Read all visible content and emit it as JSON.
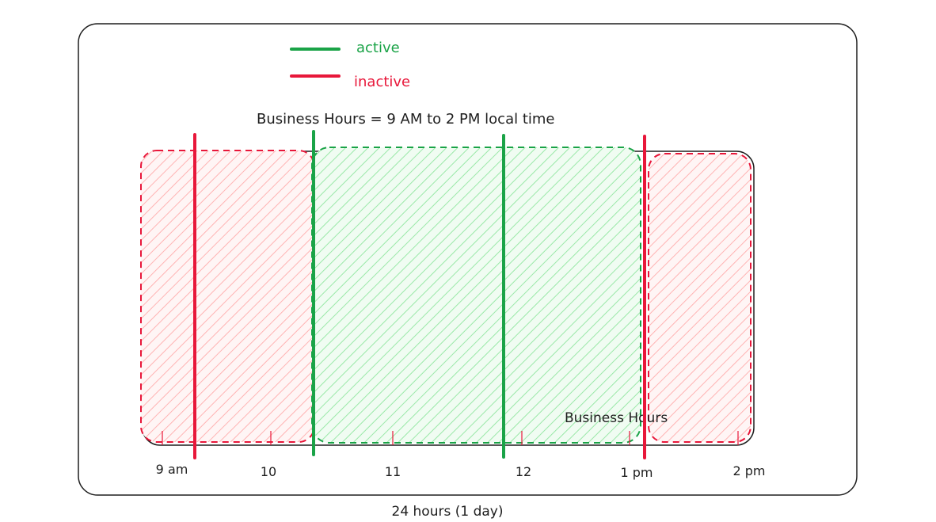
{
  "legend": {
    "items": [
      {
        "label": "active",
        "color": "#1aa347"
      },
      {
        "label": "inactive",
        "color": "#e8173a"
      }
    ]
  },
  "title": "Business Hours = 9 AM to 2 PM local time",
  "regions": [
    {
      "state": "inactive",
      "color": "#e8173a",
      "fill": "#ffc9c9"
    },
    {
      "state": "active",
      "color": "#1aa347",
      "fill": "#b2f2bb",
      "label": "Business Hours"
    },
    {
      "state": "inactive",
      "color": "#e8173a",
      "fill": "#ffc9c9"
    }
  ],
  "ticks": [
    "9 am",
    "10",
    "11",
    "12",
    "1 pm",
    "2 pm"
  ],
  "footer": "24 hours (1 day)"
}
